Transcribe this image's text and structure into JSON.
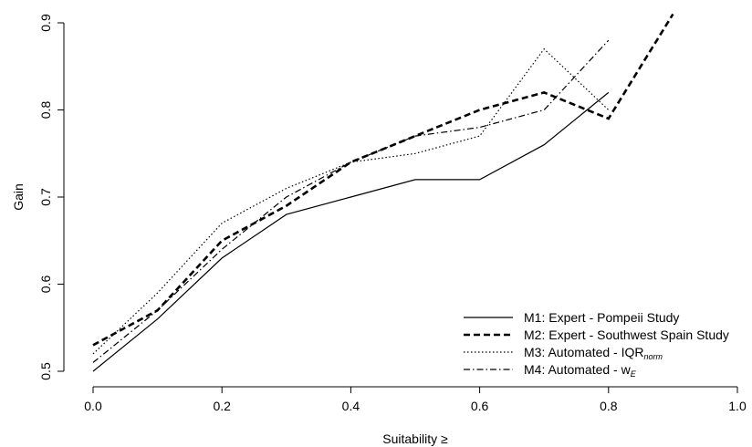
{
  "chart_data": {
    "type": "line",
    "title": "",
    "xlabel": "Suitability ≥",
    "ylabel": "Gain",
    "xlim": [
      0.0,
      1.0
    ],
    "ylim": [
      0.5,
      0.9
    ],
    "xticks": [
      "0.0",
      "0.2",
      "0.4",
      "0.6",
      "0.8",
      "1.0"
    ],
    "yticks": [
      "0.5",
      "0.6",
      "0.7",
      "0.8",
      "0.9"
    ],
    "grid": false,
    "legend_position": "bottom-right",
    "series": [
      {
        "name": "M1: Expert - Pompeii Study",
        "legend_main": "M1: Expert - Pompeii Study",
        "legend_sub": "",
        "line_style": "solid",
        "x": [
          0.0,
          0.1,
          0.2,
          0.3,
          0.4,
          0.5,
          0.6,
          0.7,
          0.8
        ],
        "y": [
          0.5,
          0.56,
          0.63,
          0.68,
          0.7,
          0.72,
          0.72,
          0.76,
          0.82
        ]
      },
      {
        "name": "M2: Expert - Southwest Spain Study",
        "legend_main": "M2: Expert - Southwest Spain Study",
        "legend_sub": "",
        "line_style": "dashed-bold",
        "x": [
          0.0,
          0.1,
          0.2,
          0.3,
          0.4,
          0.5,
          0.6,
          0.7,
          0.8,
          0.9
        ],
        "y": [
          0.53,
          0.57,
          0.65,
          0.69,
          0.74,
          0.77,
          0.8,
          0.82,
          0.79,
          0.91
        ]
      },
      {
        "name": "M3: Automated - IQRnorm",
        "legend_main": "M3: Automated - IQR",
        "legend_sub": "norm",
        "line_style": "dotted",
        "x": [
          0.0,
          0.1,
          0.2,
          0.3,
          0.4,
          0.5,
          0.6,
          0.7,
          0.8
        ],
        "y": [
          0.52,
          0.59,
          0.67,
          0.71,
          0.74,
          0.75,
          0.77,
          0.87,
          0.8
        ]
      },
      {
        "name": "M4: Automated - wE",
        "legend_main": "M4: Automated - w",
        "legend_sub": "E",
        "line_style": "dashdot",
        "x": [
          0.0,
          0.1,
          0.2,
          0.3,
          0.4,
          0.5,
          0.6,
          0.7,
          0.8
        ],
        "y": [
          0.51,
          0.57,
          0.64,
          0.7,
          0.74,
          0.77,
          0.78,
          0.8,
          0.88
        ]
      }
    ]
  }
}
